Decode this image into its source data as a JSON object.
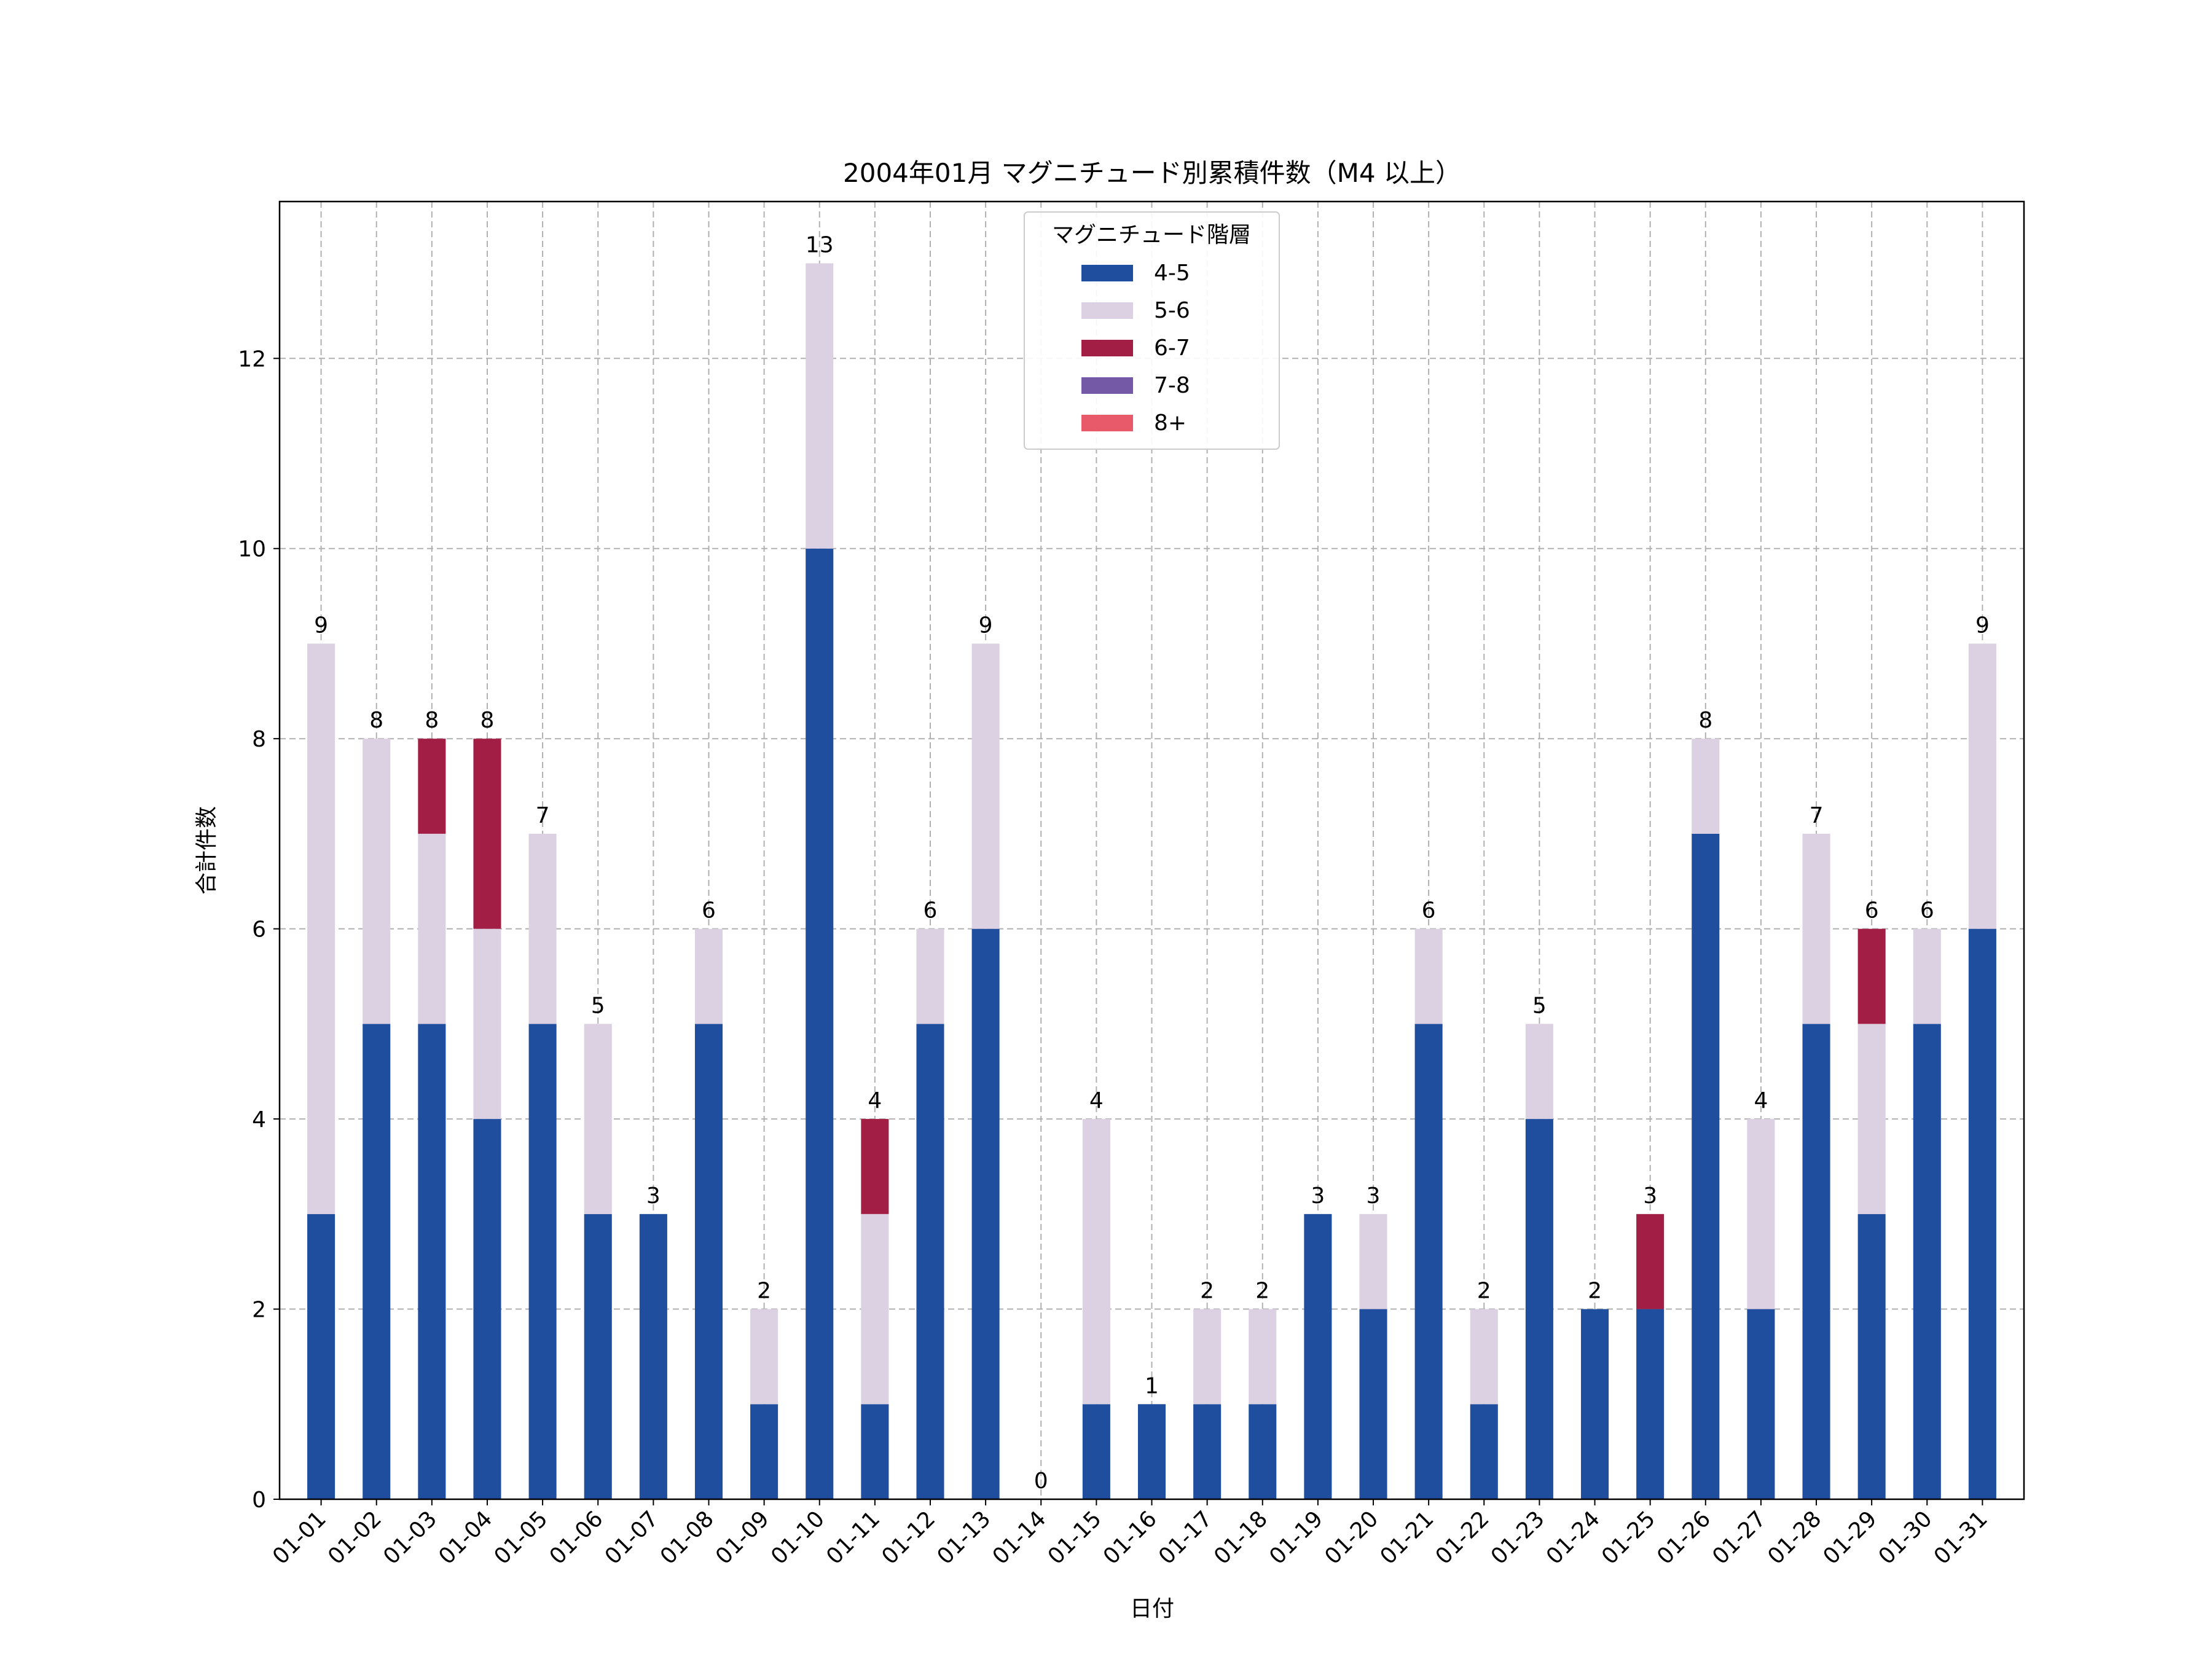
{
  "chart_data": {
    "type": "bar",
    "stacked": true,
    "title": "2004年01月 マグニチュード別累積件数（M4 以上）",
    "xlabel": "日付",
    "ylabel": "合計件数",
    "ylim": [
      0,
      13.65
    ],
    "yticks": [
      0,
      2,
      4,
      6,
      8,
      10,
      12
    ],
    "grid": true,
    "legend": {
      "title": "マグニチュード階層",
      "placement": "upper-center"
    },
    "categories": [
      "01-01",
      "01-02",
      "01-03",
      "01-04",
      "01-05",
      "01-06",
      "01-07",
      "01-08",
      "01-09",
      "01-10",
      "01-11",
      "01-12",
      "01-13",
      "01-14",
      "01-15",
      "01-16",
      "01-17",
      "01-18",
      "01-19",
      "01-20",
      "01-21",
      "01-22",
      "01-23",
      "01-24",
      "01-25",
      "01-26",
      "01-27",
      "01-28",
      "01-29",
      "01-30",
      "01-31"
    ],
    "series": [
      {
        "name": "4-5",
        "color": "#1f4e9e",
        "values": [
          3,
          5,
          5,
          4,
          5,
          3,
          3,
          5,
          1,
          10,
          1,
          5,
          6,
          0,
          1,
          1,
          1,
          1,
          3,
          2,
          5,
          1,
          4,
          2,
          2,
          7,
          2,
          5,
          3,
          5,
          6
        ]
      },
      {
        "name": "5-6",
        "color": "#dcd0e3",
        "values": [
          6,
          3,
          2,
          2,
          2,
          2,
          0,
          1,
          1,
          3,
          2,
          1,
          3,
          0,
          3,
          0,
          1,
          1,
          0,
          1,
          1,
          1,
          1,
          0,
          0,
          1,
          2,
          2,
          2,
          1,
          3
        ]
      },
      {
        "name": "6-7",
        "color": "#a31e45",
        "values": [
          0,
          0,
          1,
          2,
          0,
          0,
          0,
          0,
          0,
          0,
          1,
          0,
          0,
          0,
          0,
          0,
          0,
          0,
          0,
          0,
          0,
          0,
          0,
          0,
          1,
          0,
          0,
          0,
          1,
          0,
          0
        ]
      },
      {
        "name": "7-8",
        "color": "#7359a6",
        "values": [
          0,
          0,
          0,
          0,
          0,
          0,
          0,
          0,
          0,
          0,
          0,
          0,
          0,
          0,
          0,
          0,
          0,
          0,
          0,
          0,
          0,
          0,
          0,
          0,
          0,
          0,
          0,
          0,
          0,
          0,
          0
        ]
      },
      {
        "name": "8+",
        "color": "#e85a6a",
        "values": [
          0,
          0,
          0,
          0,
          0,
          0,
          0,
          0,
          0,
          0,
          0,
          0,
          0,
          0,
          0,
          0,
          0,
          0,
          0,
          0,
          0,
          0,
          0,
          0,
          0,
          0,
          0,
          0,
          0,
          0,
          0
        ]
      }
    ],
    "totals": [
      9,
      8,
      8,
      8,
      7,
      5,
      3,
      6,
      2,
      13,
      4,
      6,
      9,
      0,
      4,
      1,
      2,
      2,
      3,
      3,
      6,
      2,
      5,
      2,
      3,
      8,
      4,
      7,
      6,
      6,
      9
    ]
  }
}
